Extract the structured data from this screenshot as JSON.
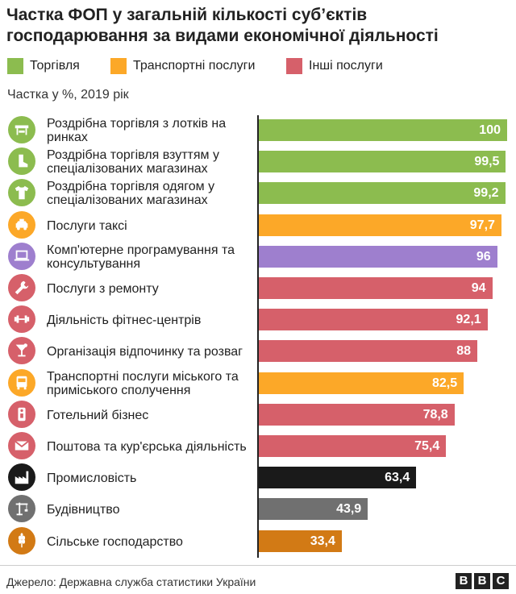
{
  "title": "Частка ФОП у загальній кількості суб’єктів господарювання за видами економічної діяльності",
  "legend": [
    {
      "label": "Торгівля",
      "color": "#8cbc4f"
    },
    {
      "label": "Транспортні послуги",
      "color": "#fca828"
    },
    {
      "label": "Інші послуги",
      "color": "#d6606a"
    }
  ],
  "subtitle": "Частка у %, 2019 рік",
  "chart_data": {
    "type": "bar",
    "orientation": "horizontal",
    "xlim": [
      0,
      100
    ],
    "categories": [
      "Роздрібна торгівля з лотків на ринках",
      "Роздрібна торгівля взуттям у спеціалізованих магазинах",
      "Роздрібна торгівля одягом у спеціалізованих магазинах",
      "Послуги таксі",
      "Комп'ютерне програмування та консультування",
      "Послуги з ремонту",
      "Діяльність фітнес-центрів",
      "Організація відпочинку та розваг",
      "Транспортні послуги міського та приміського сполучення",
      "Готельний бізнес",
      "Поштова та кур'єрська діяльність",
      "Промисловість",
      "Будівництво",
      "Сільське господарство"
    ],
    "values": [
      100,
      99.5,
      99.2,
      97.7,
      96,
      94,
      92.1,
      88,
      82.5,
      78.8,
      75.4,
      63.4,
      43.9,
      33.4
    ],
    "value_labels": [
      "100",
      "99,5",
      "99,2",
      "97,7",
      "96",
      "94",
      "92,1",
      "88",
      "82,5",
      "78,8",
      "75,4",
      "63,4",
      "43,9",
      "33,4"
    ],
    "colors": [
      "#8cbc4f",
      "#8cbc4f",
      "#8cbc4f",
      "#fca828",
      "#9e7fce",
      "#d6606a",
      "#d6606a",
      "#d6606a",
      "#fca828",
      "#d6606a",
      "#d6606a",
      "#1a1a1a",
      "#707070",
      "#d27a15"
    ],
    "icons": [
      "market-stall-icon",
      "boot-icon",
      "tshirt-icon",
      "taxi-icon",
      "laptop-icon",
      "wrench-icon",
      "dumbbell-icon",
      "cocktail-icon",
      "bus-icon",
      "hotel-tag-icon",
      "envelope-icon",
      "factory-icon",
      "crane-icon",
      "wheat-icon"
    ]
  },
  "source": "Джерело: Державна служба статистики України",
  "logo": [
    "B",
    "B",
    "C"
  ]
}
